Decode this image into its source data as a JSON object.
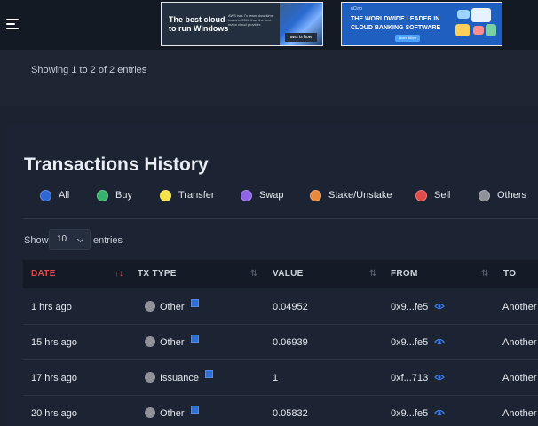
{
  "ads": [
    {
      "title": "The best cloud to run Windows",
      "body": "AWS has 7x fewer downtime hours in 2018 than the next major cloud provider.",
      "cta": "aws is how"
    },
    {
      "brand": "nCino",
      "title": "THE WORLDWIDE LEADER IN CLOUD BANKING SOFTWARE",
      "cta": "Learn More"
    }
  ],
  "top_panel": {
    "showing": "Showing 1 to 2 of 2 entries"
  },
  "section": {
    "title": "Transactions History"
  },
  "filters": [
    {
      "label": "All",
      "color": "#2f66d6"
    },
    {
      "label": "Buy",
      "color": "#39b36b"
    },
    {
      "label": "Transfer",
      "color": "#f2e34a"
    },
    {
      "label": "Swap",
      "color": "#8e63e6"
    },
    {
      "label": "Stake/Unstake",
      "color": "#e58a3e"
    },
    {
      "label": "Sell",
      "color": "#e04b4b"
    },
    {
      "label": "Others",
      "color": "#8f9299"
    }
  ],
  "length_control": {
    "show": "Show",
    "value": "10",
    "entries": "entries"
  },
  "table": {
    "columns": [
      "DATE",
      "TX TYPE",
      "VALUE",
      "FROM",
      "TO"
    ],
    "sort_icons": [
      "↑↓",
      "⇅",
      "⇅",
      "⇅"
    ],
    "rows": [
      {
        "date": "1 hrs ago",
        "type": "Other",
        "value": "0.04952",
        "from": "0x9...fe5",
        "to": "Another W"
      },
      {
        "date": "15 hrs ago",
        "type": "Other",
        "value": "0.06939",
        "from": "0x9...fe5",
        "to": "Another W"
      },
      {
        "date": "17 hrs ago",
        "type": "Issuance",
        "value": "1",
        "from": "0xf...713",
        "to": "Another W"
      },
      {
        "date": "20 hrs ago",
        "type": "Other",
        "value": "0.05832",
        "from": "0x9...fe5",
        "to": "Another W"
      }
    ]
  },
  "colors": {
    "accent_active_sort": "#e04b4b",
    "link_blue": "#2f6fd6"
  }
}
